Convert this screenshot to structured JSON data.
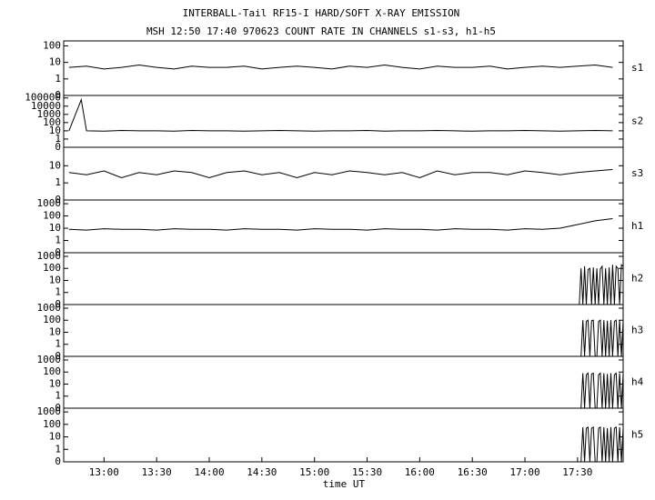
{
  "chart_data": [
    {
      "type": "line",
      "title": "INTERBALL-Tail RF15-I HARD/SOFT X-RAY EMISSION",
      "subtitle": "MSH 12:50 17:40 970623  COUNT RATE IN CHANNELS s1-s3, h1-h5",
      "label": "s1",
      "color": "#000000",
      "scale": "log",
      "x": [
        760,
        770,
        780,
        790,
        800,
        810,
        820,
        830,
        840,
        850,
        860,
        870,
        880,
        890,
        900,
        910,
        920,
        930,
        940,
        950,
        960,
        970,
        980,
        990,
        1000,
        1010,
        1020,
        1030,
        1040,
        1050,
        1060,
        1070
      ],
      "values": [
        5,
        6,
        4,
        5,
        7,
        5,
        4,
        6,
        5,
        5,
        6,
        4,
        5,
        6,
        5,
        4,
        6,
        5,
        7,
        5,
        4,
        6,
        5,
        5,
        6,
        4,
        5,
        6,
        5,
        6,
        7,
        5
      ],
      "xlim": [
        757,
        1076
      ],
      "ylim": [
        0,
        200
      ],
      "yticks": [
        0,
        1,
        10,
        100
      ]
    },
    {
      "type": "line",
      "label": "s2",
      "color": "#000000",
      "scale": "log",
      "x": [
        760,
        767,
        770,
        780,
        790,
        800,
        810,
        820,
        830,
        840,
        850,
        860,
        870,
        880,
        890,
        900,
        910,
        920,
        930,
        940,
        950,
        960,
        970,
        980,
        990,
        1000,
        1010,
        1020,
        1030,
        1040,
        1050,
        1060,
        1070
      ],
      "values": [
        10,
        60000,
        10,
        9,
        11,
        10,
        10,
        9,
        11,
        10,
        10,
        9,
        10,
        11,
        10,
        9,
        10,
        10,
        11,
        9,
        10,
        10,
        11,
        10,
        9,
        10,
        10,
        11,
        10,
        9,
        10,
        11,
        10
      ],
      "xlim": [
        757,
        1076
      ],
      "ylim": [
        0,
        200000
      ],
      "yticks": [
        0,
        1,
        10,
        100,
        1000,
        10000,
        100000
      ]
    },
    {
      "type": "line",
      "label": "s3",
      "color": "#000000",
      "scale": "log",
      "x": [
        760,
        770,
        780,
        790,
        800,
        810,
        820,
        830,
        840,
        850,
        860,
        870,
        880,
        890,
        900,
        910,
        920,
        930,
        940,
        950,
        960,
        970,
        980,
        990,
        1000,
        1010,
        1020,
        1030,
        1040,
        1050,
        1060,
        1070
      ],
      "values": [
        4,
        3,
        5,
        2,
        4,
        3,
        5,
        4,
        2,
        4,
        5,
        3,
        4,
        2,
        4,
        3,
        5,
        4,
        3,
        4,
        2,
        5,
        3,
        4,
        4,
        3,
        5,
        4,
        3,
        4,
        5,
        6
      ],
      "xlim": [
        757,
        1076
      ],
      "ylim": [
        0,
        120
      ],
      "yticks": [
        0,
        1,
        10
      ]
    },
    {
      "type": "line",
      "label": "h1",
      "color": "#000000",
      "scale": "log",
      "x": [
        760,
        770,
        780,
        790,
        800,
        810,
        820,
        830,
        840,
        850,
        860,
        870,
        880,
        890,
        900,
        910,
        920,
        930,
        940,
        950,
        960,
        970,
        980,
        990,
        1000,
        1010,
        1020,
        1030,
        1040,
        1050,
        1060,
        1070
      ],
      "values": [
        8,
        7,
        9,
        8,
        8,
        7,
        9,
        8,
        8,
        7,
        9,
        8,
        8,
        7,
        9,
        8,
        8,
        7,
        9,
        8,
        8,
        7,
        9,
        8,
        8,
        7,
        9,
        8,
        10,
        20,
        40,
        60
      ],
      "xlim": [
        757,
        1076
      ],
      "ylim": [
        0,
        2000
      ],
      "yticks": [
        0,
        1,
        10,
        100,
        1000
      ]
    },
    {
      "type": "line",
      "label": "h2",
      "color": "#000000",
      "scale": "log",
      "x": [
        1051,
        1052,
        1053,
        1054,
        1055,
        1056,
        1057,
        1058,
        1059,
        1060,
        1061,
        1062,
        1063,
        1064,
        1065,
        1066,
        1067,
        1068,
        1069,
        1070,
        1071,
        1072,
        1073,
        1074,
        1075,
        1076
      ],
      "values": [
        0,
        100,
        0,
        150,
        0,
        80,
        100,
        0,
        120,
        0,
        100,
        0,
        90,
        150,
        0,
        100,
        0,
        120,
        0,
        200,
        0,
        150,
        100,
        0,
        200,
        150
      ],
      "xlim": [
        757,
        1076
      ],
      "ylim": [
        0,
        2000
      ],
      "yticks": [
        0,
        1,
        10,
        100,
        1000
      ]
    },
    {
      "type": "line",
      "label": "h3",
      "color": "#000000",
      "scale": "log",
      "x": [
        1051,
        1052,
        1053,
        1054,
        1055,
        1056,
        1057,
        1058,
        1059,
        1060,
        1061,
        1062,
        1063,
        1064,
        1065,
        1066,
        1067,
        1068,
        1069,
        1070,
        1071,
        1072,
        1073,
        1074,
        1075,
        1076
      ],
      "values": [
        0,
        0,
        100,
        0,
        80,
        100,
        0,
        90,
        100,
        0,
        0,
        80,
        100,
        0,
        100,
        0,
        90,
        0,
        100,
        0,
        80,
        100,
        0,
        100,
        0,
        90
      ],
      "xlim": [
        757,
        1076
      ],
      "ylim": [
        0,
        2000
      ],
      "yticks": [
        0,
        1,
        10,
        100,
        1000
      ]
    },
    {
      "type": "line",
      "label": "h4",
      "color": "#000000",
      "scale": "log",
      "x": [
        1051,
        1052,
        1053,
        1054,
        1055,
        1056,
        1057,
        1058,
        1059,
        1060,
        1061,
        1062,
        1063,
        1064,
        1065,
        1066,
        1067,
        1068,
        1069,
        1070,
        1071,
        1072,
        1073,
        1074,
        1075,
        1076
      ],
      "values": [
        0,
        0,
        80,
        0,
        60,
        80,
        0,
        70,
        80,
        0,
        0,
        60,
        80,
        0,
        80,
        0,
        70,
        0,
        80,
        0,
        60,
        80,
        0,
        80,
        0,
        70
      ],
      "xlim": [
        757,
        1076
      ],
      "ylim": [
        0,
        2000
      ],
      "yticks": [
        0,
        1,
        10,
        100,
        1000
      ]
    },
    {
      "type": "line",
      "label": "h5",
      "color": "#000000",
      "scale": "log",
      "xlabel": "time UT",
      "x": [
        1051,
        1052,
        1053,
        1054,
        1055,
        1056,
        1057,
        1058,
        1059,
        1060,
        1061,
        1062,
        1063,
        1064,
        1065,
        1066,
        1067,
        1068,
        1069,
        1070,
        1071,
        1072,
        1073,
        1074,
        1075,
        1076
      ],
      "values": [
        0,
        0,
        60,
        0,
        50,
        60,
        0,
        50,
        60,
        0,
        0,
        50,
        60,
        0,
        60,
        0,
        50,
        0,
        60,
        0,
        50,
        60,
        0,
        60,
        0,
        50
      ],
      "xlim": [
        757,
        1076
      ],
      "ylim": [
        0,
        2000
      ],
      "yticks": [
        0,
        1,
        10,
        100,
        1000
      ],
      "xticks": [
        {
          "value": 780,
          "label": "13:00"
        },
        {
          "value": 810,
          "label": "13:30"
        },
        {
          "value": 840,
          "label": "14:00"
        },
        {
          "value": 870,
          "label": "14:30"
        },
        {
          "value": 900,
          "label": "15:00"
        },
        {
          "value": 930,
          "label": "15:30"
        },
        {
          "value": 960,
          "label": "16:00"
        },
        {
          "value": 990,
          "label": "16:30"
        },
        {
          "value": 1020,
          "label": "17:00"
        },
        {
          "value": 1050,
          "label": "17:30"
        }
      ]
    }
  ]
}
